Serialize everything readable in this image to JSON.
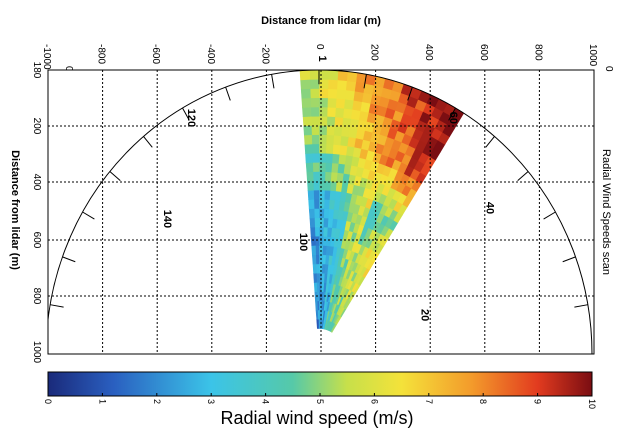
{
  "chart_data": {
    "type": "heatmap",
    "title": "",
    "side_label": "Radial Wind Speeds scan",
    "xlabel": "Distance from lidar (m)",
    "ylabel": "Distance from lidar (m)",
    "x_ticks": [
      -1000,
      -800,
      -600,
      -400,
      -200,
      0,
      200,
      400,
      600,
      800,
      1000
    ],
    "y_ticks": [
      180,
      200,
      400,
      600,
      800,
      1000
    ],
    "y_tick_labels": [
      "180",
      "200",
      "400",
      "600",
      "800",
      "1000"
    ],
    "top_left_corner_label": "0",
    "top_right_corner_label": "0",
    "xlim": [
      -1000,
      1000
    ],
    "ylim": [
      0,
      1000
    ],
    "polar_angle_labels": [
      {
        "label": "140",
        "angle_deg": 140,
        "radius": 740
      },
      {
        "label": "120",
        "angle_deg": 120,
        "radius": 960
      },
      {
        "label": "100",
        "angle_deg": 100,
        "radius": 400
      },
      {
        "label": "60",
        "angle_deg": 60,
        "radius": 960
      },
      {
        "label": "40",
        "angle_deg": 40,
        "radius": 800
      },
      {
        "label": "20",
        "angle_deg": 20,
        "radius": 400
      },
      {
        "label": "1",
        "angle_deg": 90,
        "radius": 1040
      }
    ],
    "scan_sector": {
      "angle_min_deg": 58,
      "angle_max_deg": 94,
      "range_min_m": 90,
      "range_max_m": 1000
    },
    "colorbar": {
      "label": "Radial wind speed (m/s)",
      "min": 0,
      "max": 10,
      "ticks": [
        0,
        1,
        2,
        3,
        4,
        5,
        6,
        7,
        8,
        9,
        10
      ]
    },
    "field_description_values": {
      "near_center_low_speed_band": 3.5,
      "north_east_high_speed_band": 9.0,
      "outer_edge_speed": 8.5
    }
  }
}
